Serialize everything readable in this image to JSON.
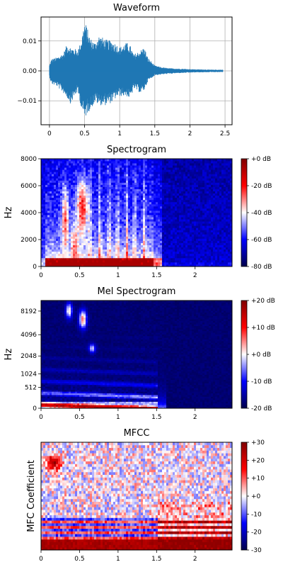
{
  "chart_data": [
    {
      "type": "line",
      "title": "Waveform",
      "xlabel": "",
      "ylabel": "",
      "xlim": [
        -0.12,
        2.6
      ],
      "ylim": [
        -0.018,
        0.018
      ],
      "x_ticks": [
        0,
        0.5,
        1,
        1.5,
        2,
        2.5
      ],
      "x_tick_labels": [
        "0",
        "0.5",
        "1",
        "1.5",
        "2",
        "2.5"
      ],
      "y_ticks": [
        0.01,
        0.0,
        -0.01
      ],
      "y_tick_labels": [
        "0.01",
        "0.00",
        "−0.01"
      ],
      "grid": true,
      "line_color": "#1f77b4",
      "envelope": {
        "x": [
          0.0,
          0.03,
          0.1,
          0.2,
          0.25,
          0.3,
          0.4,
          0.45,
          0.5,
          0.53,
          0.58,
          0.65,
          0.7,
          0.8,
          0.9,
          0.95,
          1.0,
          1.1,
          1.15,
          1.2,
          1.3,
          1.35,
          1.4,
          1.5,
          1.6,
          1.7,
          1.8,
          1.9,
          2.0,
          2.1,
          2.2,
          2.3,
          2.47
        ],
        "upper": [
          0.002,
          0.004,
          0.0045,
          0.006,
          0.009,
          0.008,
          0.007,
          0.01,
          0.0165,
          0.015,
          0.011,
          0.0095,
          0.012,
          0.0105,
          0.01,
          0.009,
          0.008,
          0.0095,
          0.0085,
          0.0055,
          0.007,
          0.008,
          0.0045,
          0.0018,
          0.0012,
          0.0009,
          0.0008,
          0.0007,
          0.0006,
          0.0005,
          0.0005,
          0.0004,
          0.0004
        ],
        "lower": [
          -0.002,
          -0.0045,
          -0.005,
          -0.0075,
          -0.009,
          -0.011,
          -0.007,
          -0.012,
          -0.0165,
          -0.0145,
          -0.013,
          -0.0105,
          -0.0115,
          -0.0115,
          -0.0105,
          -0.009,
          -0.0085,
          -0.0085,
          -0.0095,
          -0.006,
          -0.0075,
          -0.0065,
          -0.0035,
          -0.0015,
          -0.0012,
          -0.001,
          -0.0008,
          -0.0007,
          -0.0006,
          -0.0005,
          -0.0005,
          -0.0004,
          -0.0004
        ]
      }
    },
    {
      "type": "heatmap",
      "title": "Spectrogram",
      "xlabel": "",
      "ylabel": "Hz",
      "xlim": [
        0,
        2.48
      ],
      "ylim": [
        0,
        8000
      ],
      "x_ticks": [
        0,
        0.5,
        1,
        1.5,
        2
      ],
      "x_tick_labels": [
        "0",
        "0.5",
        "1",
        "1.5",
        "2"
      ],
      "y_ticks": [
        0,
        2000,
        4000,
        6000,
        8000
      ],
      "y_tick_labels": [
        "0",
        "2000",
        "4000",
        "6000",
        "8000"
      ],
      "colormap": "seismic",
      "colorbar": {
        "min": -80,
        "max": 0,
        "ticks": [
          0,
          -20,
          -40,
          -60,
          -80
        ],
        "tick_labels": [
          "+0 dB",
          "-20 dB",
          "-40 dB",
          "-60 dB",
          "-80 dB"
        ]
      }
    },
    {
      "type": "heatmap",
      "title": "Mel Spectrogram",
      "xlabel": "",
      "ylabel": "Hz",
      "xlim": [
        0,
        2.48
      ],
      "y_scale": "mel",
      "x_ticks": [
        0,
        0.5,
        1,
        1.5,
        2
      ],
      "x_tick_labels": [
        "0",
        "0.5",
        "1",
        "1.5",
        "2"
      ],
      "y_ticks": [
        0,
        512,
        1024,
        2048,
        4096,
        8192
      ],
      "y_tick_labels": [
        "0",
        "512",
        "1024",
        "2048",
        "4096",
        "8192"
      ],
      "colormap": "seismic",
      "colorbar": {
        "min": -20,
        "max": 20,
        "ticks": [
          20,
          10,
          0,
          -10,
          -20
        ],
        "tick_labels": [
          "+20 dB",
          "+10 dB",
          "+0 dB",
          "-10 dB",
          "-20 dB"
        ]
      }
    },
    {
      "type": "heatmap",
      "title": "MFCC",
      "xlabel": "",
      "ylabel": "MFC Coefficient",
      "xlim": [
        0,
        2.48
      ],
      "x_ticks": [
        0,
        0.5,
        1,
        1.5,
        2
      ],
      "x_tick_labels": [
        "0",
        "0.5",
        "1",
        "1.5",
        "2"
      ],
      "y_ticks": [],
      "colormap": "seismic",
      "colorbar": {
        "min": -30,
        "max": 30,
        "ticks": [
          30,
          20,
          10,
          0,
          -10,
          -20,
          -30
        ],
        "tick_labels": [
          "+30",
          "+20",
          "+10",
          "+0",
          "-10",
          "-20",
          "-30"
        ]
      }
    }
  ]
}
